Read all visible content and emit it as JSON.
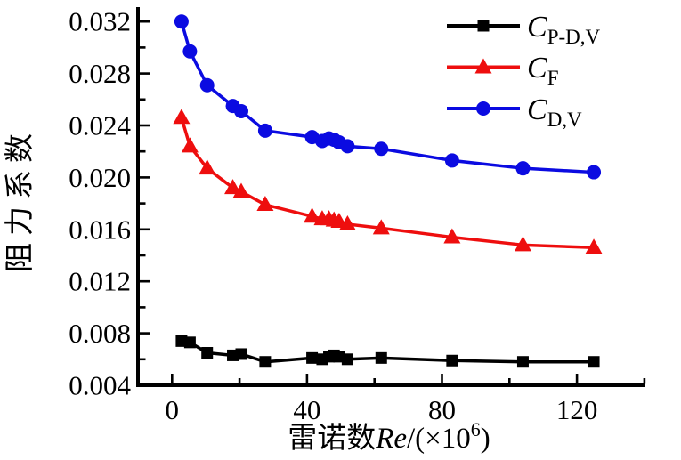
{
  "chart_data": {
    "type": "line",
    "title": "",
    "ylabel": "阻力系数",
    "xlabel": {
      "cjk_prefix": "雷诺数",
      "variable": "Re",
      "after_var": "/(×10",
      "exponent": "6",
      "close": ")"
    },
    "xlim": [
      -10,
      140
    ],
    "ylim": [
      0.004,
      0.0331
    ],
    "grid": false,
    "legend_position": "top-right",
    "x_ticks": {
      "major": [
        0,
        40,
        80,
        120
      ],
      "labels": [
        "0",
        "40",
        "80",
        "120"
      ],
      "minor": [
        20,
        60,
        100,
        140
      ]
    },
    "y_ticks": {
      "major": [
        0.004,
        0.008,
        0.012,
        0.016,
        0.02,
        0.024,
        0.028,
        0.032
      ],
      "labels": [
        "0.004",
        "0.008",
        "0.012",
        "0.016",
        "0.020",
        "0.024",
        "0.028",
        "0.032"
      ],
      "minor": [
        0.006,
        0.01,
        0.014,
        0.018,
        0.022,
        0.026,
        0.03
      ]
    },
    "x": [
      2.8,
      5.3,
      10.4,
      18,
      20.5,
      27.6,
      41.5,
      44.5,
      46.5,
      48,
      49.5,
      52,
      62,
      83,
      104,
      125
    ],
    "series": [
      {
        "label_main": "C",
        "label_sub": "P-D,V",
        "color": "#000000",
        "marker": "square",
        "values": [
          0.0074,
          0.0073,
          0.0065,
          0.0063,
          0.0064,
          0.0058,
          0.0061,
          0.006,
          0.0062,
          0.0063,
          0.0062,
          0.006,
          0.0061,
          0.0059,
          0.0058,
          0.0058
        ]
      },
      {
        "label_main": "C",
        "label_sub": "F",
        "color": "#ee0e0e",
        "marker": "triangle",
        "values": [
          0.0246,
          0.0224,
          0.0207,
          0.0192,
          0.0189,
          0.0179,
          0.017,
          0.0168,
          0.0168,
          0.0167,
          0.0166,
          0.0164,
          0.0161,
          0.0154,
          0.0148,
          0.0146
        ]
      },
      {
        "label_main": "C",
        "label_sub": "D,V",
        "color": "#0b0be1",
        "marker": "circle",
        "values": [
          0.032,
          0.0297,
          0.0271,
          0.0255,
          0.0251,
          0.0236,
          0.0231,
          0.0228,
          0.023,
          0.0229,
          0.0227,
          0.0224,
          0.0222,
          0.0213,
          0.0207,
          0.0204
        ]
      }
    ]
  }
}
